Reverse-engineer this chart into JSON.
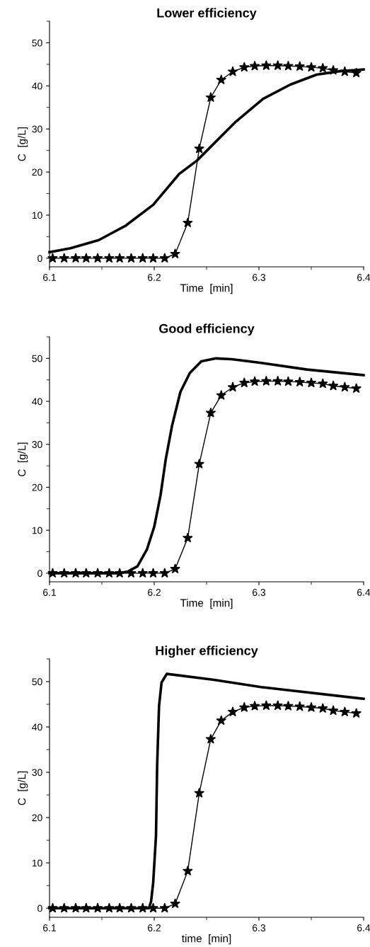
{
  "chart_data": [
    {
      "type": "line",
      "title": "Lower efficiency",
      "xlabel": "Time  [min]",
      "ylabel": "C  [g/L]",
      "xlim": [
        6.1,
        6.4
      ],
      "ylim": [
        -2,
        55
      ],
      "xticks": [
        6.1,
        6.2,
        6.3,
        6.4
      ],
      "yticks": [
        0,
        10,
        20,
        30,
        40,
        50
      ],
      "grid": false,
      "legend": false,
      "series": [
        {
          "color": "#000000",
          "marker": "none",
          "x": [
            6.1,
            6.12,
            6.147,
            6.173,
            6.199,
            6.224,
            6.241,
            6.278,
            6.304,
            6.33,
            6.355,
            6.377,
            6.4
          ],
          "values": [
            1.4,
            2.3,
            4.2,
            7.6,
            12.4,
            19.6,
            22.7,
            31.7,
            37.0,
            40.3,
            42.6,
            43.4,
            43.8
          ]
        },
        {
          "color": "#000000",
          "marker": "star",
          "x": [
            6.103,
            6.114,
            6.125,
            6.135,
            6.146,
            6.157,
            6.167,
            6.178,
            6.189,
            6.199,
            6.21,
            6.22,
            6.232,
            6.243,
            6.254,
            6.264,
            6.275,
            6.286,
            6.296,
            6.307,
            6.318,
            6.328,
            6.339,
            6.35,
            6.361,
            6.371,
            6.382,
            6.393
          ],
          "values": [
            0,
            0,
            0,
            0,
            0,
            0,
            0,
            0,
            0,
            0,
            0,
            1.0,
            8.2,
            25.4,
            37.3,
            41.4,
            43.3,
            44.3,
            44.6,
            44.7,
            44.7,
            44.6,
            44.5,
            44.3,
            44.1,
            43.6,
            43.3,
            43.0
          ]
        }
      ]
    },
    {
      "type": "line",
      "title": "Good efficiency",
      "xlabel": "Time  [min]",
      "ylabel": "C  [g/L]",
      "xlim": [
        6.1,
        6.4
      ],
      "ylim": [
        -2,
        55
      ],
      "xticks": [
        6.1,
        6.2,
        6.3,
        6.4
      ],
      "yticks": [
        0,
        10,
        20,
        30,
        40,
        50
      ],
      "grid": false,
      "legend": false,
      "series": [
        {
          "color": "#000000",
          "marker": "none",
          "x": [
            6.1,
            6.166,
            6.175,
            6.184,
            6.193,
            6.2,
            6.206,
            6.211,
            6.217,
            6.225,
            6.234,
            6.245,
            6.259,
            6.274,
            6.301,
            6.346,
            6.4
          ],
          "values": [
            0,
            0,
            0.4,
            1.6,
            5.5,
            10.8,
            18.1,
            26.5,
            34.3,
            42.2,
            46.6,
            49.3,
            50.0,
            49.8,
            49.0,
            47.4,
            46.1
          ]
        },
        {
          "color": "#000000",
          "marker": "star",
          "x": [
            6.103,
            6.114,
            6.125,
            6.135,
            6.146,
            6.157,
            6.167,
            6.178,
            6.189,
            6.199,
            6.21,
            6.22,
            6.232,
            6.243,
            6.254,
            6.264,
            6.275,
            6.286,
            6.296,
            6.307,
            6.318,
            6.328,
            6.339,
            6.35,
            6.361,
            6.371,
            6.382,
            6.393
          ],
          "values": [
            0,
            0,
            0,
            0,
            0,
            0,
            0,
            0,
            0,
            0,
            0,
            1.0,
            8.2,
            25.4,
            37.3,
            41.4,
            43.3,
            44.3,
            44.6,
            44.7,
            44.7,
            44.6,
            44.5,
            44.3,
            44.1,
            43.6,
            43.3,
            43.0
          ]
        }
      ]
    },
    {
      "type": "line",
      "title": "Higher efficiency",
      "xlabel": "time  [min]",
      "ylabel": "C  [g/L]",
      "xlim": [
        6.1,
        6.4
      ],
      "ylim": [
        -2,
        55
      ],
      "xticks": [
        6.1,
        6.2,
        6.3,
        6.4
      ],
      "yticks": [
        0,
        10,
        20,
        30,
        40,
        50
      ],
      "grid": false,
      "legend": false,
      "series": [
        {
          "color": "#000000",
          "marker": "none",
          "x": [
            6.1,
            6.195,
            6.197,
            6.199,
            6.2017,
            6.2028,
            6.2046,
            6.207,
            6.212,
            6.257,
            6.302,
            6.4
          ],
          "values": [
            0,
            0,
            1.5,
            5.6,
            16.0,
            31.6,
            44.6,
            49.8,
            51.7,
            50.4,
            48.8,
            46.2
          ]
        },
        {
          "color": "#000000",
          "marker": "star",
          "x": [
            6.103,
            6.114,
            6.125,
            6.135,
            6.146,
            6.157,
            6.167,
            6.178,
            6.189,
            6.199,
            6.21,
            6.22,
            6.232,
            6.243,
            6.254,
            6.264,
            6.275,
            6.286,
            6.296,
            6.307,
            6.318,
            6.328,
            6.339,
            6.35,
            6.361,
            6.371,
            6.382,
            6.393
          ],
          "values": [
            0,
            0,
            0,
            0,
            0,
            0,
            0,
            0,
            0,
            0,
            0,
            1.0,
            8.2,
            25.4,
            37.3,
            41.4,
            43.3,
            44.3,
            44.6,
            44.7,
            44.7,
            44.6,
            44.5,
            44.3,
            44.1,
            43.6,
            43.3,
            43.0
          ]
        }
      ]
    }
  ]
}
